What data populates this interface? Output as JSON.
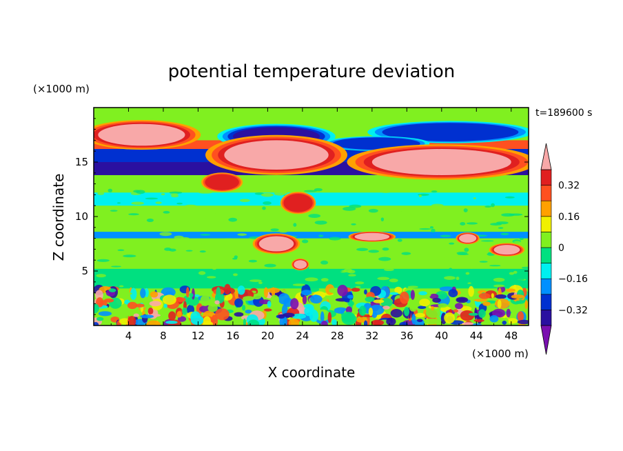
{
  "chart_data": {
    "type": "heatmap",
    "title": "potential temperature deviation",
    "xlabel": "X coordinate",
    "ylabel": "Z coordinate",
    "x_unit": "(×1000 m)",
    "y_unit": "(×1000 m)",
    "time_label": "t=189600 s",
    "xlim": [
      0,
      50
    ],
    "ylim": [
      0,
      20
    ],
    "x_ticks": [
      4,
      8,
      12,
      16,
      20,
      24,
      28,
      32,
      36,
      40,
      44,
      48
    ],
    "y_ticks": [
      5,
      10,
      15
    ],
    "colorbar": {
      "levels": [
        -0.4,
        -0.32,
        -0.24,
        -0.16,
        -0.08,
        0,
        0.08,
        0.16,
        0.24,
        0.32,
        0.4
      ],
      "colors": [
        "#7a10b0",
        "#2a10a0",
        "#0030d0",
        "#0090ff",
        "#00f0f0",
        "#00e080",
        "#80f020",
        "#f0f000",
        "#ffa000",
        "#ff5020",
        "#e02020",
        "#f8a8a8"
      ],
      "tick_labels": [
        "0.32",
        "0.16",
        "0",
        "−0.16",
        "−0.32"
      ],
      "tick_values": [
        0.32,
        0.16,
        0,
        -0.16,
        -0.32
      ]
    },
    "field_layers": [
      {
        "z_range": [
          17.0,
          20.0
        ],
        "level": 0.0
      },
      {
        "z_range": [
          16.2,
          17.0
        ],
        "level": 0.3
      },
      {
        "z_range": [
          15.0,
          16.2
        ],
        "level": -0.3
      },
      {
        "z_range": [
          13.8,
          15.0
        ],
        "level": -0.38
      },
      {
        "z_range": [
          12.2,
          13.8
        ],
        "level": 0.02
      },
      {
        "z_range": [
          11.0,
          12.2
        ],
        "level": -0.1
      },
      {
        "z_range": [
          8.6,
          11.0
        ],
        "level": 0.04
      },
      {
        "z_range": [
          8.0,
          8.6
        ],
        "level": -0.24
      },
      {
        "z_range": [
          5.2,
          8.0
        ],
        "level": 0.04
      },
      {
        "z_range": [
          3.4,
          5.2
        ],
        "level": -0.06
      },
      {
        "z_range": [
          0.0,
          3.4
        ],
        "level": 0.0
      }
    ],
    "warm_patches": [
      {
        "x": [
          0.5,
          10.5
        ],
        "z": [
          16.5,
          18.5
        ],
        "level": 0.44
      },
      {
        "x": [
          15.0,
          27.0
        ],
        "z": [
          14.3,
          17.0
        ],
        "level": 0.44
      },
      {
        "x": [
          32.0,
          48.0
        ],
        "z": [
          13.8,
          16.2
        ],
        "level": 0.44
      },
      {
        "x": [
          13.0,
          16.5
        ],
        "z": [
          12.5,
          13.8
        ],
        "level": 0.36
      },
      {
        "x": [
          22.0,
          25.0
        ],
        "z": [
          10.5,
          12.0
        ],
        "level": 0.32
      },
      {
        "x": [
          19.0,
          23.0
        ],
        "z": [
          6.8,
          8.2
        ],
        "level": 0.44
      },
      {
        "x": [
          30.0,
          34.0
        ],
        "z": [
          7.8,
          8.5
        ],
        "level": 0.44
      },
      {
        "x": [
          42.0,
          44.0
        ],
        "z": [
          7.6,
          8.4
        ],
        "level": 0.44
      },
      {
        "x": [
          46.0,
          49.0
        ],
        "z": [
          6.5,
          7.4
        ],
        "level": 0.44
      },
      {
        "x": [
          23.0,
          24.5
        ],
        "z": [
          5.2,
          6.0
        ],
        "level": 0.44
      }
    ],
    "cold_patches": [
      {
        "x": [
          16.0,
          26.0
        ],
        "z": [
          16.5,
          18.2
        ],
        "level": -0.4
      },
      {
        "x": [
          34.0,
          48.0
        ],
        "z": [
          17.0,
          18.5
        ],
        "level": -0.32
      },
      {
        "x": [
          28.0,
          37.0
        ],
        "z": [
          16.2,
          17.2
        ],
        "level": -0.32
      }
    ],
    "boundary_layer": {
      "z_range": [
        0.0,
        3.4
      ],
      "description": "turbulent mixed field of all levels"
    }
  }
}
